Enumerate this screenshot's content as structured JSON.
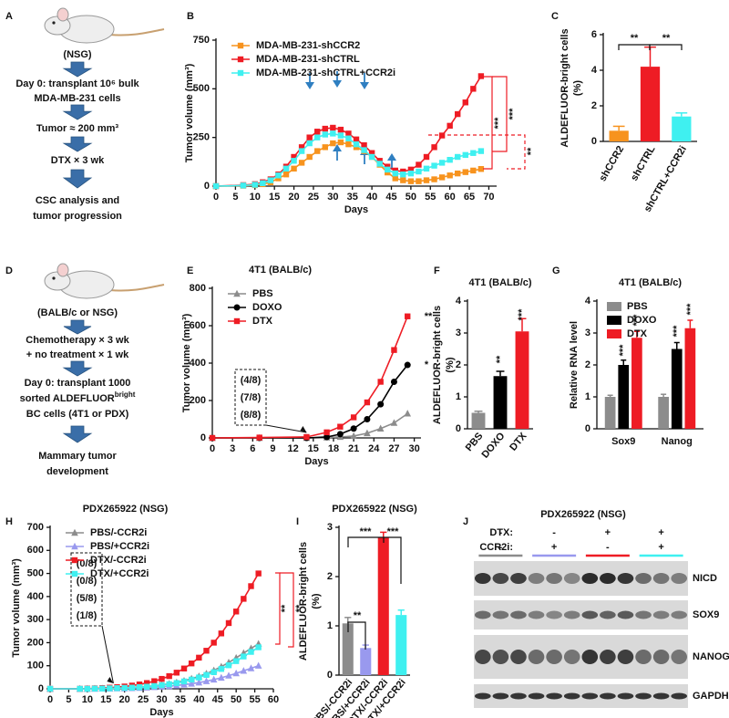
{
  "chart_data": [
    {
      "panel": "B",
      "type": "line",
      "x_label": "Days",
      "y_label": "Tumor volume (mm³)",
      "x": [
        0,
        7,
        10,
        12,
        14,
        16,
        18,
        20,
        22,
        24,
        26,
        28,
        30,
        32,
        34,
        36,
        38,
        40,
        42,
        44,
        46,
        48,
        50,
        52,
        54,
        56,
        58,
        60,
        62,
        64,
        66,
        68
      ],
      "series": [
        {
          "name": "MDA-MB-231-shCCR2",
          "color": "#f7931e",
          "marker": "square",
          "values": [
            0,
            2,
            5,
            10,
            20,
            40,
            60,
            90,
            120,
            150,
            180,
            200,
            220,
            225,
            215,
            200,
            180,
            150,
            110,
            70,
            40,
            30,
            25,
            25,
            30,
            35,
            45,
            55,
            65,
            72,
            80,
            88
          ]
        },
        {
          "name": "MDA-MB-231-shCTRL",
          "color": "#ee1c24",
          "marker": "square",
          "values": [
            0,
            5,
            10,
            20,
            35,
            60,
            100,
            150,
            200,
            250,
            280,
            295,
            300,
            290,
            270,
            240,
            210,
            170,
            130,
            100,
            80,
            75,
            85,
            110,
            150,
            200,
            260,
            310,
            370,
            430,
            500,
            565
          ]
        },
        {
          "name": "MDA-MB-231-shCTRL+CCR2i",
          "color": "#3ff0f0",
          "marker": "square",
          "values": [
            0,
            3,
            7,
            15,
            30,
            55,
            90,
            130,
            180,
            220,
            250,
            265,
            270,
            260,
            245,
            215,
            185,
            150,
            115,
            85,
            65,
            60,
            65,
            75,
            90,
            105,
            120,
            135,
            150,
            160,
            170,
            180
          ]
        }
      ],
      "xlim": [
        0,
        72
      ],
      "xticks": [
        0,
        5,
        10,
        15,
        20,
        25,
        30,
        35,
        40,
        45,
        50,
        55,
        60,
        65,
        70
      ],
      "ylim": [
        0,
        750
      ],
      "yticks": [
        0,
        250,
        500,
        750
      ],
      "legend": "upper left",
      "annotations": [
        "***",
        "***",
        "**"
      ]
    },
    {
      "panel": "C",
      "type": "bar",
      "y_label": [
        "ALDEFLUOR-bright cells",
        "(%)"
      ],
      "categories": [
        "shCCR2",
        "shCTRL",
        "shCTRL+CCR2i"
      ],
      "values": [
        0.6,
        4.2,
        1.4
      ],
      "errors": [
        0.25,
        1.1,
        0.2
      ],
      "colors": [
        "#f7931e",
        "#ee1c24",
        "#3ff0f0"
      ],
      "ylim": [
        0,
        6
      ],
      "yticks": [
        0,
        2,
        4,
        6
      ],
      "annotations": [
        "**",
        "**"
      ]
    },
    {
      "panel": "E",
      "type": "line",
      "title": "4T1 (BALB/c)",
      "x_label": "Days",
      "y_label": "Tumor volume (mm³)",
      "x": [
        0,
        7,
        14,
        17,
        19,
        21,
        23,
        25,
        27,
        29
      ],
      "series": [
        {
          "name": "PBS",
          "color": "#8c8c8c",
          "marker": "triangle",
          "values": [
            0,
            0,
            0,
            2,
            5,
            10,
            25,
            50,
            80,
            130
          ]
        },
        {
          "name": "DOXO",
          "color": "#000000",
          "marker": "circle",
          "values": [
            0,
            0,
            0,
            5,
            20,
            50,
            100,
            180,
            300,
            390
          ]
        },
        {
          "name": "DTX",
          "color": "#ee1c24",
          "marker": "square",
          "values": [
            0,
            2,
            5,
            30,
            60,
            110,
            190,
            300,
            470,
            650
          ]
        }
      ],
      "xlim": [
        0,
        31
      ],
      "xticks": [
        0,
        3,
        6,
        9,
        12,
        15,
        18,
        21,
        24,
        27,
        30
      ],
      "ylim": [
        0,
        800
      ],
      "yticks": [
        0,
        200,
        400,
        600,
        800
      ],
      "legend": "upper left",
      "tumor_incidence": [
        "(4/8)",
        "(7/8)",
        "(8/8)"
      ],
      "annotations": [
        "**",
        "*"
      ]
    },
    {
      "panel": "F",
      "type": "bar",
      "title": "4T1 (BALB/c)",
      "y_label": [
        "ALDEFLUOR-bright cells",
        "(%)"
      ],
      "categories": [
        "PBS",
        "DOXO",
        "DTX"
      ],
      "values": [
        0.5,
        1.65,
        3.05
      ],
      "errors": [
        0.05,
        0.15,
        0.4
      ],
      "colors": [
        "#8c8c8c",
        "#000000",
        "#ee1c24"
      ],
      "ylim": [
        0,
        4
      ],
      "yticks": [
        0,
        1,
        2,
        3,
        4
      ],
      "annotations": [
        "**",
        "***"
      ]
    },
    {
      "panel": "G",
      "type": "grouped_bar",
      "title": "4T1 (BALB/c)",
      "y_label": "Relative RNA level",
      "categories": [
        "Sox9",
        "Nanog"
      ],
      "series": [
        {
          "name": "PBS",
          "color": "#8c8c8c",
          "values": [
            1,
            1
          ],
          "errors": [
            0.05,
            0.08
          ]
        },
        {
          "name": "DOXO",
          "color": "#000000",
          "values": [
            2.0,
            2.5
          ],
          "errors": [
            0.15,
            0.2
          ]
        },
        {
          "name": "DTX",
          "color": "#ee1c24",
          "values": [
            2.85,
            3.15
          ],
          "errors": [
            0.2,
            0.25
          ]
        }
      ],
      "ylim": [
        0,
        4
      ],
      "yticks": [
        0,
        1,
        2,
        3,
        4
      ],
      "legend": "upper left",
      "annotations": [
        "***",
        "***",
        "***",
        "***"
      ]
    },
    {
      "panel": "H",
      "type": "line",
      "title": "PDX265922 (NSG)",
      "x_label": "Days",
      "y_label": "Tumor volume (mm³)",
      "x": [
        0,
        8,
        10,
        12,
        14,
        16,
        18,
        20,
        22,
        24,
        26,
        28,
        30,
        32,
        34,
        36,
        38,
        40,
        42,
        44,
        46,
        48,
        50,
        52,
        54,
        56
      ],
      "series": [
        {
          "name": "PBS/-CCR2i",
          "color": "#8c8c8c",
          "marker": "triangle",
          "values": [
            0,
            0,
            0,
            1,
            1,
            2,
            3,
            4,
            6,
            8,
            10,
            13,
            17,
            22,
            28,
            35,
            44,
            54,
            66,
            80,
            96,
            114,
            134,
            155,
            175,
            195
          ]
        },
        {
          "name": "PBS/+CCR2i",
          "color": "#9999ee",
          "marker": "triangle",
          "values": [
            0,
            0,
            0,
            0,
            1,
            1,
            2,
            2,
            3,
            4,
            5,
            7,
            9,
            11,
            14,
            18,
            22,
            27,
            33,
            40,
            48,
            57,
            67,
            78,
            89,
            100
          ]
        },
        {
          "name": "DTX/-CCR2i",
          "color": "#ee1c24",
          "marker": "square",
          "values": [
            0,
            0,
            1,
            2,
            3,
            5,
            7,
            10,
            14,
            19,
            25,
            33,
            43,
            55,
            70,
            88,
            110,
            135,
            165,
            200,
            240,
            285,
            335,
            390,
            445,
            500
          ]
        },
        {
          "name": "DTX/+CCR2i",
          "color": "#3ff0f0",
          "marker": "square",
          "values": [
            0,
            0,
            0,
            1,
            1,
            2,
            3,
            4,
            5,
            7,
            9,
            12,
            16,
            20,
            25,
            32,
            40,
            49,
            60,
            72,
            86,
            102,
            120,
            140,
            160,
            180
          ]
        }
      ],
      "xlim": [
        0,
        60
      ],
      "xticks": [
        0,
        5,
        10,
        15,
        20,
        25,
        30,
        35,
        40,
        45,
        50,
        55,
        60
      ],
      "ylim": [
        0,
        700
      ],
      "yticks": [
        0,
        100,
        200,
        300,
        400,
        500,
        600,
        700
      ],
      "legend": "upper left",
      "tumor_incidence": [
        "(0/8)",
        "(0/8)",
        "(5/8)",
        "(1/8)"
      ],
      "annotations": [
        "**",
        "**"
      ]
    },
    {
      "panel": "I",
      "type": "bar",
      "title": "PDX265922 (NSG)",
      "y_label": [
        "ALDEFLUOR-bright cells",
        "(%)"
      ],
      "categories": [
        "PBS/-CCR2i",
        "PBS/+CCR2i",
        "DTX/-CCR2i",
        "DTX/+CCR2i"
      ],
      "values": [
        1.05,
        0.55,
        2.8,
        1.22
      ],
      "errors": [
        0.12,
        0.06,
        0.1,
        0.1
      ],
      "colors": [
        "#8c8c8c",
        "#9999ee",
        "#ee1c24",
        "#3ff0f0"
      ],
      "ylim": [
        0,
        3
      ],
      "yticks": [
        0,
        1,
        2,
        3
      ],
      "annotations": [
        "***",
        "***",
        "**"
      ]
    }
  ],
  "diagram_a": {
    "panel": "A",
    "host": "(NSG)",
    "steps": [
      [
        "Day 0: transplant 10⁶ bulk",
        "MDA-MB-231 cells"
      ],
      [
        "Tumor ≈ 200 mm³"
      ],
      [
        "DTX × 3 wk"
      ],
      [
        "CSC analysis and",
        "tumor progression"
      ]
    ]
  },
  "diagram_d": {
    "panel": "D",
    "host": "(BALB/c or NSG)",
    "steps": [
      [
        "Chemotherapy × 3 wk",
        "+ no treatment × 1 wk"
      ],
      [
        "Day 0: transplant 1000",
        {
          "text": "sorted ALDEFLUOR",
          "sup": "bright"
        },
        "BC cells (4T1 or PDX)"
      ],
      [
        "Mammary tumor",
        "development"
      ]
    ]
  },
  "blot_j": {
    "panel": "J",
    "title": "PDX265922 (NSG)",
    "row_labels": [
      "DTX:",
      "CCR2i:"
    ],
    "conditions": [
      [
        "-",
        "-"
      ],
      [
        "-",
        "+"
      ],
      [
        "+",
        "-"
      ],
      [
        "+",
        "+"
      ]
    ],
    "bands": [
      "NICD",
      "SOX9",
      "NANOG",
      "GAPDH"
    ]
  }
}
